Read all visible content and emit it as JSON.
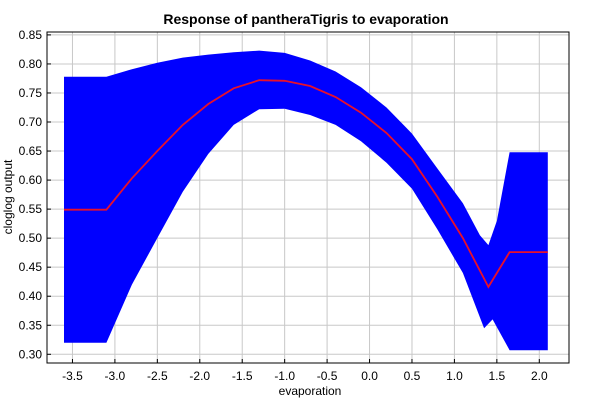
{
  "chart_data": {
    "type": "area",
    "title": "Response of pantheraTigris to evaporation",
    "xlabel": "evaporation",
    "ylabel": "cloglog output",
    "xlim": [
      -3.8,
      2.35
    ],
    "ylim": [
      0.285,
      0.855
    ],
    "x_ticks": [
      -3.5,
      -3.0,
      -2.5,
      -2.0,
      -1.5,
      -1.0,
      -0.5,
      0.0,
      0.5,
      1.0,
      1.5,
      2.0
    ],
    "x_tick_labels": [
      "-3.5",
      "-3.0",
      "-2.5",
      "-2.0",
      "-1.5",
      "-1.0",
      "-0.5",
      "0.0",
      "0.5",
      "1.0",
      "1.5",
      "2.0"
    ],
    "y_ticks": [
      0.3,
      0.35,
      0.4,
      0.45,
      0.5,
      0.55,
      0.6,
      0.65,
      0.7,
      0.75,
      0.8,
      0.85
    ],
    "y_tick_labels": [
      "0.30",
      "0.35",
      "0.40",
      "0.45",
      "0.50",
      "0.55",
      "0.60",
      "0.65",
      "0.70",
      "0.75",
      "0.80",
      "0.85"
    ],
    "grid": true,
    "colors": {
      "band": "#0000ff",
      "line": "#e8102a",
      "grid": "#c8c8c8"
    },
    "series": [
      {
        "values": [
          {
            "x": -3.6,
            "y": 0.549
          },
          {
            "x": -3.1,
            "y": 0.549
          },
          {
            "x": -2.8,
            "y": 0.603
          },
          {
            "x": -2.5,
            "y": 0.65
          },
          {
            "x": -2.2,
            "y": 0.695
          },
          {
            "x": -1.9,
            "y": 0.731
          },
          {
            "x": -1.6,
            "y": 0.758
          },
          {
            "x": -1.3,
            "y": 0.772
          },
          {
            "x": -1.0,
            "y": 0.771
          },
          {
            "x": -0.7,
            "y": 0.762
          },
          {
            "x": -0.4,
            "y": 0.743
          },
          {
            "x": -0.1,
            "y": 0.716
          },
          {
            "x": 0.2,
            "y": 0.681
          },
          {
            "x": 0.5,
            "y": 0.636
          },
          {
            "x": 0.8,
            "y": 0.571
          },
          {
            "x": 1.1,
            "y": 0.5
          },
          {
            "x": 1.4,
            "y": 0.416
          },
          {
            "x": 1.65,
            "y": 0.476
          },
          {
            "x": 2.1,
            "y": 0.476
          }
        ]
      },
      {
        "values": [
          {
            "x": -3.6,
            "y": 0.778
          },
          {
            "x": -3.1,
            "y": 0.778
          },
          {
            "x": -2.8,
            "y": 0.791
          },
          {
            "x": -2.5,
            "y": 0.802
          },
          {
            "x": -2.2,
            "y": 0.811
          },
          {
            "x": -1.9,
            "y": 0.816
          },
          {
            "x": -1.6,
            "y": 0.82
          },
          {
            "x": -1.3,
            "y": 0.823
          },
          {
            "x": -1.0,
            "y": 0.819
          },
          {
            "x": -0.7,
            "y": 0.806
          },
          {
            "x": -0.4,
            "y": 0.787
          },
          {
            "x": -0.1,
            "y": 0.76
          },
          {
            "x": 0.2,
            "y": 0.725
          },
          {
            "x": 0.5,
            "y": 0.68
          },
          {
            "x": 0.8,
            "y": 0.62
          },
          {
            "x": 1.1,
            "y": 0.56
          },
          {
            "x": 1.3,
            "y": 0.505
          },
          {
            "x": 1.4,
            "y": 0.488
          },
          {
            "x": 1.5,
            "y": 0.53
          },
          {
            "x": 1.65,
            "y": 0.648
          },
          {
            "x": 2.1,
            "y": 0.648
          }
        ]
      },
      {
        "values": [
          {
            "x": -3.6,
            "y": 0.32
          },
          {
            "x": -3.1,
            "y": 0.32
          },
          {
            "x": -2.8,
            "y": 0.42
          },
          {
            "x": -2.5,
            "y": 0.5
          },
          {
            "x": -2.2,
            "y": 0.58
          },
          {
            "x": -1.9,
            "y": 0.645
          },
          {
            "x": -1.6,
            "y": 0.695
          },
          {
            "x": -1.3,
            "y": 0.722
          },
          {
            "x": -1.0,
            "y": 0.723
          },
          {
            "x": -0.7,
            "y": 0.712
          },
          {
            "x": -0.4,
            "y": 0.695
          },
          {
            "x": -0.1,
            "y": 0.667
          },
          {
            "x": 0.2,
            "y": 0.63
          },
          {
            "x": 0.5,
            "y": 0.585
          },
          {
            "x": 0.8,
            "y": 0.515
          },
          {
            "x": 1.1,
            "y": 0.44
          },
          {
            "x": 1.35,
            "y": 0.345
          },
          {
            "x": 1.45,
            "y": 0.36
          },
          {
            "x": 1.65,
            "y": 0.307
          },
          {
            "x": 2.1,
            "y": 0.307
          }
        ]
      }
    ]
  }
}
